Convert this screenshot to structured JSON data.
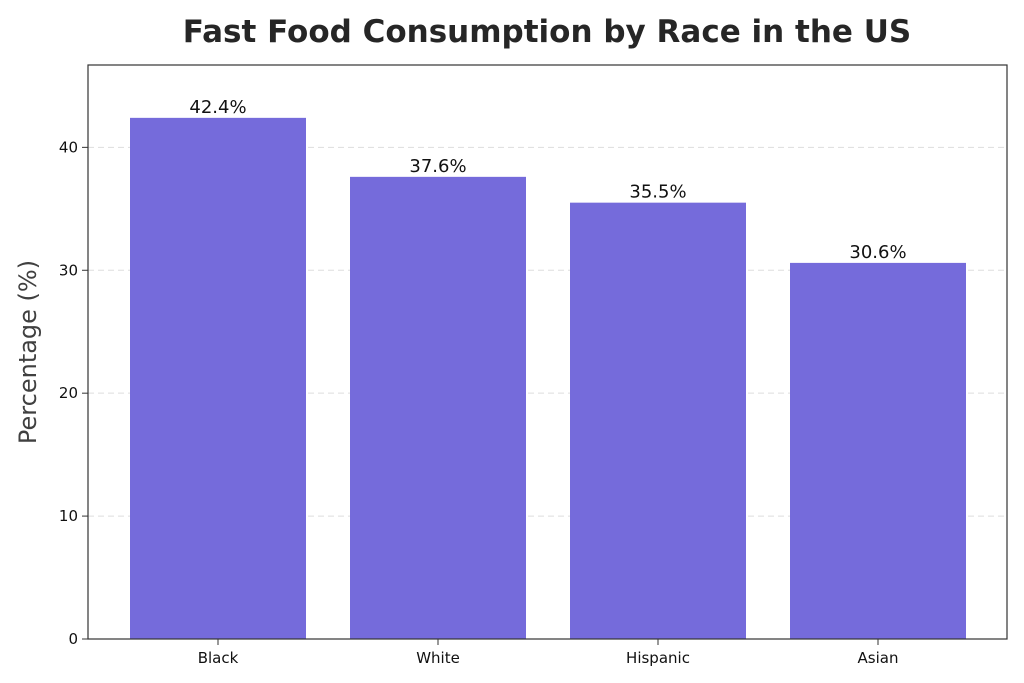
{
  "chart_data": {
    "type": "bar",
    "title": "Fast Food Consumption by Race in the US",
    "xlabel": "",
    "ylabel": "Percentage (%)",
    "categories": [
      "Black",
      "White",
      "Hispanic",
      "Asian"
    ],
    "values": [
      42.4,
      37.6,
      35.5,
      30.6
    ],
    "data_labels": [
      "42.4%",
      "37.6%",
      "35.5%",
      "30.6%"
    ],
    "ylim": [
      0,
      46.7
    ],
    "yticks": [
      0,
      10,
      20,
      30,
      40
    ],
    "grid": "y-dashed",
    "legend": "none",
    "bar_color": "#756bdb"
  }
}
